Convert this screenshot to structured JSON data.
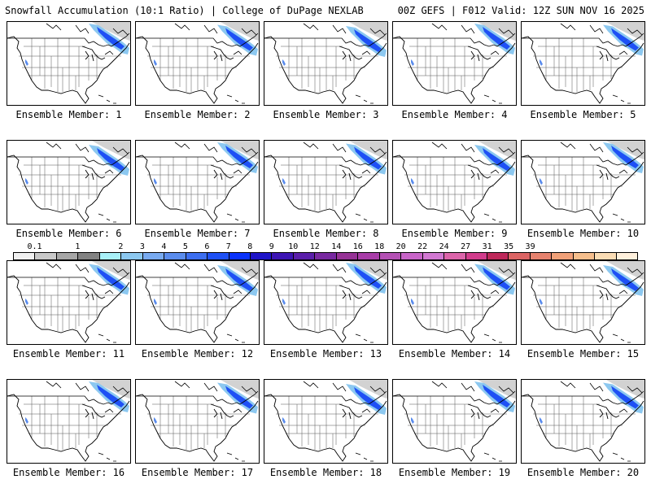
{
  "header": {
    "left_title": "Snowfall Accumulation (10:1 Ratio) | College of DuPage NEXLAB",
    "right_title": "00Z GEFS | F012 Valid: 12Z SUN NOV 16 2025"
  },
  "members": [
    {
      "label": "Ensemble Member: 1"
    },
    {
      "label": "Ensemble Member: 2"
    },
    {
      "label": "Ensemble Member: 3"
    },
    {
      "label": "Ensemble Member: 4"
    },
    {
      "label": "Ensemble Member: 5"
    },
    {
      "label": "Ensemble Member: 6"
    },
    {
      "label": "Ensemble Member: 7"
    },
    {
      "label": "Ensemble Member: 8"
    },
    {
      "label": "Ensemble Member: 9"
    },
    {
      "label": "Ensemble Member: 10"
    },
    {
      "label": "Ensemble Member: 11"
    },
    {
      "label": "Ensemble Member: 12"
    },
    {
      "label": "Ensemble Member: 13"
    },
    {
      "label": "Ensemble Member: 14"
    },
    {
      "label": "Ensemble Member: 15"
    },
    {
      "label": "Ensemble Member: 16"
    },
    {
      "label": "Ensemble Member: 17"
    },
    {
      "label": "Ensemble Member: 18"
    },
    {
      "label": "Ensemble Member: 19"
    },
    {
      "label": "Ensemble Member: 20"
    }
  ],
  "colorbar": {
    "labels": [
      "0.1",
      "1",
      "2",
      "3",
      "4",
      "5",
      "6",
      "7",
      "8",
      "9",
      "10",
      "12",
      "14",
      "16",
      "18",
      "20",
      "22",
      "24",
      "27",
      "31",
      "35",
      "39"
    ],
    "colors": [
      "#f0f0f0",
      "#c8c8c8",
      "#a6a6a6",
      "#828282",
      "#a8f0f8",
      "#8cc8f0",
      "#78aaf0",
      "#5a8ced",
      "#3c6ef0",
      "#1e50f5",
      "#0a32fa",
      "#1e14c8",
      "#3c14b4",
      "#5a1eaa",
      "#7828a0",
      "#963296",
      "#a83ca8",
      "#b450b4",
      "#c864c8",
      "#d278d2",
      "#dc64aa",
      "#d23c8c",
      "#be285a",
      "#dc6464",
      "#e6826e",
      "#f0a078",
      "#f5be8c",
      "#fadcb4",
      "#fff0dc"
    ]
  },
  "style": {
    "coast_color": "#000000",
    "border_color": "#555555",
    "terrain_gray": "#d2d2d2"
  }
}
